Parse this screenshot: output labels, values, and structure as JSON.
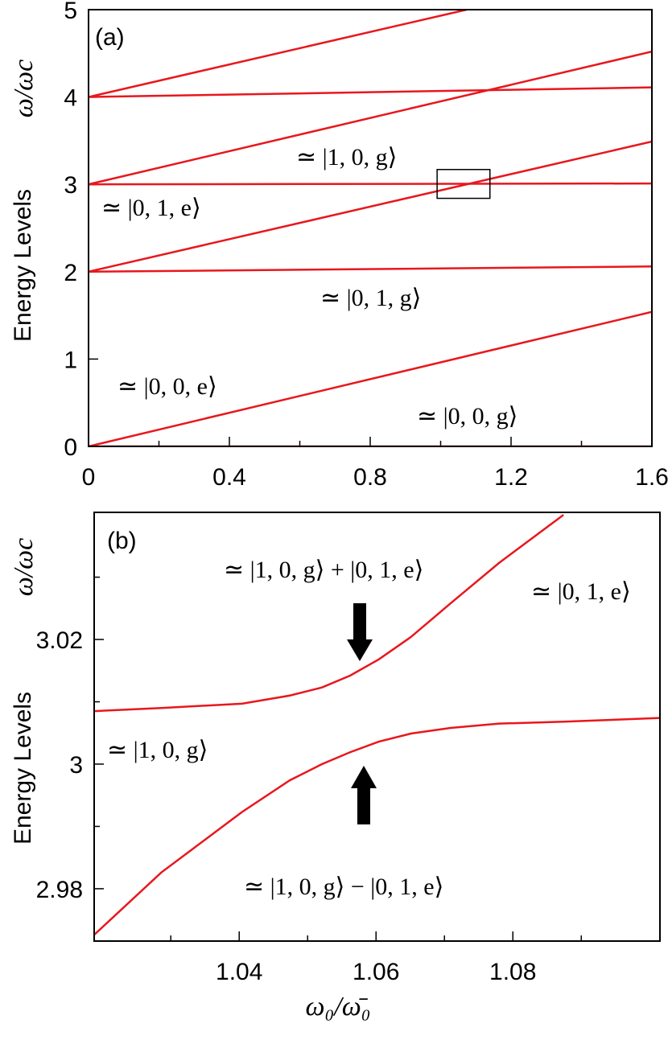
{
  "chart_data": [
    {
      "type": "line",
      "title": "(a)",
      "ylabel": "Energy Levels",
      "ylabel_unit": "ω/ωc",
      "xlim": [
        0,
        1.6
      ],
      "ylim": [
        0,
        5
      ],
      "xticks": [
        0,
        0.4,
        0.8,
        1.2,
        1.6
      ],
      "xminor": [
        0.2,
        0.6,
        1.0,
        1.4
      ],
      "yticks": [
        0,
        1,
        2,
        3,
        4,
        5
      ],
      "series": [
        {
          "color": "#e8171d",
          "x": [
            0,
            1.6
          ],
          "values": [
            0,
            0
          ]
        },
        {
          "color": "#e8171d",
          "x": [
            0,
            1.6
          ],
          "values": [
            0,
            1.54
          ]
        },
        {
          "color": "#e8171d",
          "x": [
            0,
            1.6
          ],
          "values": [
            2,
            2.06
          ]
        },
        {
          "color": "#e8171d",
          "x": [
            0,
            1.6
          ],
          "values": [
            2,
            3.49
          ]
        },
        {
          "color": "#e8171d",
          "x": [
            0,
            1.6
          ],
          "values": [
            3,
            3.01
          ]
        },
        {
          "color": "#e8171d",
          "x": [
            0,
            1.6
          ],
          "values": [
            3,
            4.52
          ]
        },
        {
          "color": "#e8171d",
          "x": [
            0,
            1.6
          ],
          "values": [
            4,
            4.11
          ]
        },
        {
          "color": "#e8171d",
          "x": [
            0,
            1.074
          ],
          "values": [
            4,
            5
          ]
        }
      ],
      "highlight_box": {
        "x": [
          0.99,
          1.14
        ],
        "y": [
          2.84,
          3.17
        ]
      },
      "annotations": [
        "≃ |1, 0, g⟩",
        "≃ |0, 1, e⟩",
        "≃ |0, 1, g⟩",
        "≃ |0, 0, e⟩",
        "≃ |0, 0, g⟩"
      ]
    },
    {
      "type": "line",
      "title": "(b)",
      "ylabel": "Energy Levels",
      "ylabel_unit": "ω/ωc",
      "xlabel": "ω₀/ω̄₀",
      "xlim": [
        1.0188,
        1.1015
      ],
      "ylim": [
        2.9716,
        3.0404
      ],
      "xticks": [
        1.04,
        1.06,
        1.08
      ],
      "xminor": [
        1.03,
        1.05,
        1.07,
        1.09
      ],
      "yticks": [
        2.98,
        3,
        3.02
      ],
      "yminor": [
        2.99,
        3.01,
        3.03
      ],
      "series": [
        {
          "color": "#e8171d",
          "x": [
            1.0188,
            1.0286,
            1.0404,
            1.0474,
            1.0521,
            1.0562,
            1.0604,
            1.0651,
            1.0709,
            1.078,
            1.0874
          ],
          "values": [
            3.0085,
            3.009,
            3.0097,
            3.011,
            3.0123,
            3.0142,
            3.0168,
            3.0204,
            3.0258,
            3.0323,
            3.04
          ]
        },
        {
          "color": "#e8171d",
          "x": [
            1.0188,
            1.0286,
            1.0404,
            1.0474,
            1.0521,
            1.0562,
            1.0604,
            1.0651,
            1.0709,
            1.078,
            1.0874,
            1.1015
          ],
          "values": [
            2.9726,
            2.9826,
            2.9923,
            2.9974,
            3.0,
            3.0019,
            3.0036,
            3.0049,
            3.0058,
            3.0065,
            3.0068,
            3.0074
          ]
        }
      ],
      "annotations": [
        "≃ |1, 0, g⟩ + |0, 1, e⟩",
        "≃ |0, 1, e⟩",
        "≃ |1, 0, g⟩",
        "≃ |1, 0, g⟩ − |0, 1, e⟩"
      ]
    }
  ]
}
